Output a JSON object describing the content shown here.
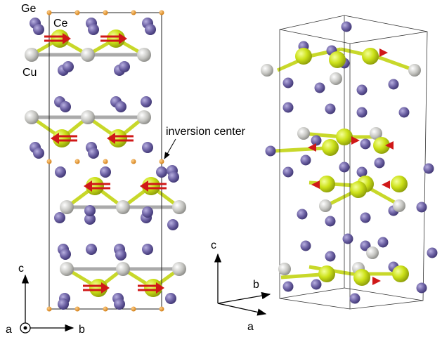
{
  "left_panel": {
    "atom_labels": {
      "ge": "Ge",
      "ce": "Ce",
      "cu": "Cu"
    },
    "annotation": "inversion center",
    "axis_labels": {
      "c": "c",
      "a": "a",
      "b": "b"
    }
  },
  "right_panel": {
    "axis_labels": {
      "c": "c",
      "b": "b",
      "a": "a"
    }
  }
}
